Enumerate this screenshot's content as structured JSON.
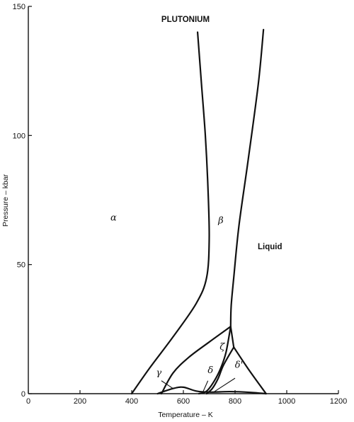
{
  "chart_data": {
    "type": "line",
    "title": "PLUTONIUM",
    "xlabel": "Temperature – K",
    "ylabel": "Pressure – kbar",
    "xlim": [
      0,
      1200
    ],
    "ylim": [
      0,
      150
    ],
    "xticks": [
      0,
      200,
      400,
      600,
      800,
      1000,
      1200
    ],
    "yticks": [
      0,
      50,
      100,
      150
    ],
    "xtick_labels": [
      "0",
      "200",
      "400",
      "600",
      "800",
      "1000",
      "1200"
    ],
    "ytick_labels": [
      "0",
      "50",
      "100",
      "150"
    ],
    "grid": false,
    "series": [
      {
        "points": [
          [
            655,
            140
          ],
          [
            670,
            120
          ],
          [
            685,
            100
          ],
          [
            695,
            80
          ],
          [
            700,
            60
          ],
          [
            690,
            45
          ],
          [
            650,
            35
          ],
          [
            560,
            22
          ],
          [
            470,
            10
          ],
          [
            400,
            0
          ]
        ]
      },
      {
        "points": [
          [
            910,
            141
          ],
          [
            890,
            120
          ],
          [
            850,
            90
          ],
          [
            815,
            65
          ],
          [
            795,
            45
          ],
          [
            785,
            34
          ],
          [
            783,
            26
          ]
        ]
      },
      {
        "points": [
          [
            515,
            0
          ],
          [
            560,
            8
          ],
          [
            620,
            14
          ],
          [
            700,
            20
          ],
          [
            783,
            26
          ]
        ]
      },
      {
        "points": [
          [
            783,
            26
          ],
          [
            765,
            16
          ],
          [
            745,
            10
          ],
          [
            720,
            5
          ],
          [
            690,
            1
          ],
          [
            660,
            0
          ]
        ]
      },
      {
        "points": [
          [
            783,
            26
          ],
          [
            795,
            18
          ]
        ]
      },
      {
        "points": [
          [
            795,
            18
          ],
          [
            755,
            11
          ],
          [
            735,
            6
          ],
          [
            712,
            2
          ],
          [
            690,
            0
          ]
        ]
      },
      {
        "points": [
          [
            795,
            18
          ],
          [
            855,
            9
          ],
          [
            920,
            0
          ]
        ]
      },
      {
        "points": [
          [
            500,
            0
          ],
          [
            560,
            2
          ],
          [
            600,
            2.5
          ],
          [
            650,
            1
          ],
          [
            700,
            0.6
          ],
          [
            780,
            0.8
          ],
          [
            860,
            0.5
          ],
          [
            920,
            0
          ]
        ]
      }
    ],
    "annotations": [
      {
        "text": "α",
        "x": 330,
        "y": 67
      },
      {
        "text": "β",
        "x": 745,
        "y": 66
      },
      {
        "text": "Liquid",
        "x": 935,
        "y": 56
      },
      {
        "text": "ζ",
        "x": 750,
        "y": 17
      },
      {
        "text": "γ",
        "x": 505,
        "y": 7
      },
      {
        "text": "δ",
        "x": 705,
        "y": 8
      },
      {
        "text": "δ'",
        "x": 815,
        "y": 10
      }
    ],
    "pointers": [
      {
        "from": [
          515,
          5
        ],
        "to": [
          560,
          2
        ]
      },
      {
        "from": [
          695,
          5
        ],
        "to": [
          675,
          0.5
        ]
      },
      {
        "from": [
          800,
          6
        ],
        "to": [
          720,
          0.8
        ]
      }
    ]
  }
}
